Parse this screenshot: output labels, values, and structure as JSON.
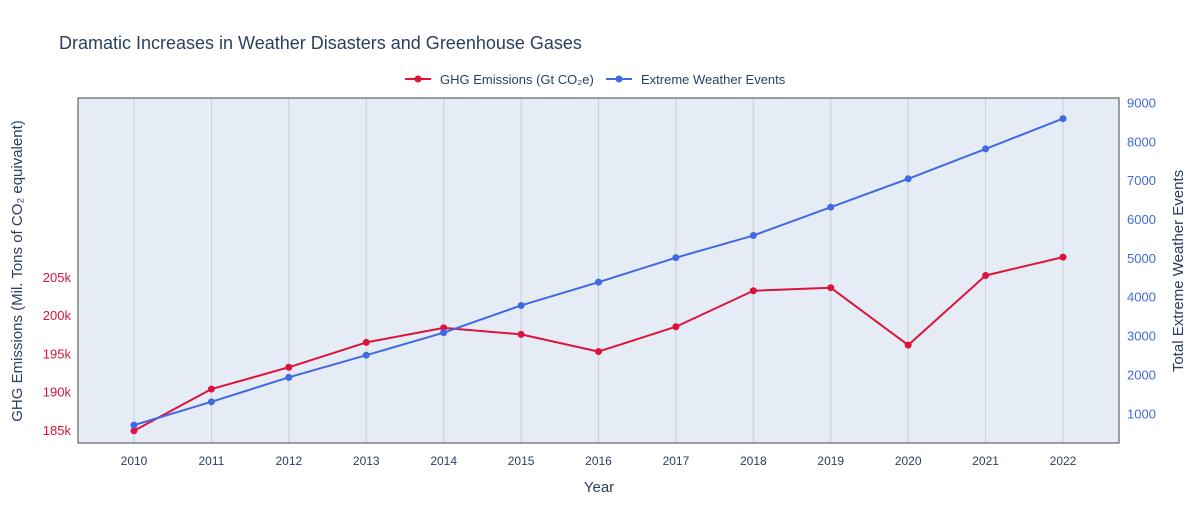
{
  "chart_data": {
    "type": "line",
    "title": "Dramatic Increases in Weather Disasters and Greenhouse Gases",
    "xlabel": "Year",
    "ylabel_left": "GHG Emissions (Mil. Tons of CO₂ equivalent)",
    "ylabel_right": "Total Extreme Weather Events",
    "legend_position": "top-center",
    "grid": true,
    "x": [
      2010,
      2011,
      2012,
      2013,
      2014,
      2015,
      2016,
      2017,
      2018,
      2019,
      2020,
      2021,
      2022
    ],
    "x_tick_labels": [
      "2010",
      "2011",
      "2012",
      "2013",
      "2014",
      "2015",
      "2016",
      "2017",
      "2018",
      "2019",
      "2020",
      "2021",
      "2022"
    ],
    "y_left_range": [
      183400,
      228500
    ],
    "y_left_ticks": [
      185000,
      190000,
      195000,
      200000,
      205000
    ],
    "y_left_tick_labels": [
      "185k",
      "190k",
      "195k",
      "200k",
      "205k"
    ],
    "y_right_range": [
      260,
      9140
    ],
    "y_right_ticks": [
      1000,
      2000,
      3000,
      4000,
      5000,
      6000,
      7000,
      8000,
      9000
    ],
    "y_right_tick_labels": [
      "1000",
      "2000",
      "3000",
      "4000",
      "5000",
      "6000",
      "7000",
      "8000",
      "9000"
    ],
    "series": [
      {
        "name": "GHG Emissions (Gt CO₂e)",
        "axis": "left",
        "color": "#dc143c",
        "values": [
          185000,
          190450,
          193300,
          196550,
          198450,
          197600,
          195350,
          198600,
          203300,
          203700,
          196200,
          205300,
          207700
        ]
      },
      {
        "name": "Extreme Weather Events",
        "axis": "right",
        "color": "#4169e1",
        "values": [
          720,
          1320,
          1950,
          2520,
          3100,
          3800,
          4400,
          5030,
          5600,
          6330,
          7060,
          7830,
          8610
        ]
      }
    ]
  }
}
